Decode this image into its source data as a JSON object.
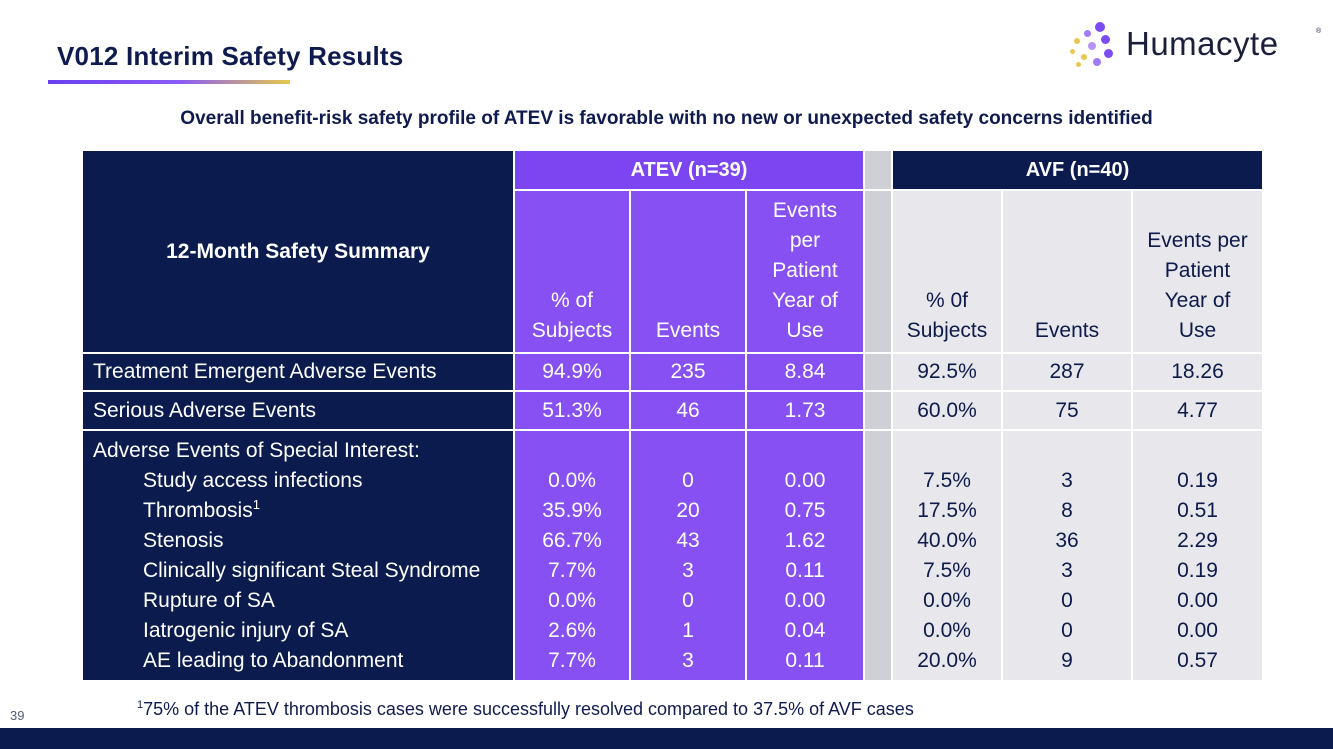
{
  "title": "V012 Interim Safety Results",
  "logo": {
    "text": "Humacyte",
    "reg": "®"
  },
  "subtitle": "Overall benefit-risk safety profile of ATEV is favorable with no new or unexpected safety concerns identified",
  "table": {
    "header_label": "12-Month Safety Summary",
    "groups": {
      "atev": "ATEV (n=39)",
      "avf": "AVF (n=40)"
    },
    "atev_columns": [
      "% of\nSubjects",
      "Events",
      "Events\nper\nPatient\nYear of\nUse"
    ],
    "avf_columns": [
      "% 0f\nSubjects",
      "Events",
      "Events per\nPatient\nYear of\nUse"
    ],
    "rows": [
      {
        "label": "Treatment Emergent Adverse Events",
        "atev": [
          "94.9%",
          "235",
          "8.84"
        ],
        "avf": [
          "92.5%",
          "287",
          "18.26"
        ]
      },
      {
        "label": "Serious Adverse Events",
        "atev": [
          "51.3%",
          "46",
          "1.73"
        ],
        "avf": [
          "60.0%",
          "75",
          "4.77"
        ]
      }
    ],
    "aesi": {
      "heading": "Adverse Events of Special Interest:",
      "items": [
        {
          "label": "Study access infections",
          "sup": "",
          "atev": [
            "0.0%",
            "0",
            "0.00"
          ],
          "avf": [
            "7.5%",
            "3",
            "0.19"
          ]
        },
        {
          "label": "Thrombosis",
          "sup": "1",
          "atev": [
            "35.9%",
            "20",
            "0.75"
          ],
          "avf": [
            "17.5%",
            "8",
            "0.51"
          ]
        },
        {
          "label": "Stenosis",
          "sup": "",
          "atev": [
            "66.7%",
            "43",
            "1.62"
          ],
          "avf": [
            "40.0%",
            "36",
            "2.29"
          ]
        },
        {
          "label": "Clinically significant Steal Syndrome",
          "sup": "",
          "atev": [
            "7.7%",
            "3",
            "0.11"
          ],
          "avf": [
            "7.5%",
            "3",
            "0.19"
          ]
        },
        {
          "label": "Rupture of SA",
          "sup": "",
          "atev": [
            "0.0%",
            "0",
            "0.00"
          ],
          "avf": [
            "0.0%",
            "0",
            "0.00"
          ]
        },
        {
          "label": "Iatrogenic injury of SA",
          "sup": "",
          "atev": [
            "2.6%",
            "1",
            "0.04"
          ],
          "avf": [
            "0.0%",
            "0",
            "0.00"
          ]
        },
        {
          "label": "AE leading to Abandonment",
          "sup": "",
          "atev": [
            "7.7%",
            "3",
            "0.11"
          ],
          "avf": [
            "20.0%",
            "9",
            "0.57"
          ]
        }
      ]
    }
  },
  "footnote": {
    "sup": "1",
    "text": "75% of the ATEV thrombosis cases were successfully resolved compared to 37.5% of AVF cases"
  },
  "page_number": "39",
  "colors": {
    "navy": "#0c1b4e",
    "purple": "#8650f3",
    "light_gray": "#e7e7ec",
    "gap_gray": "#cfcfd6"
  }
}
